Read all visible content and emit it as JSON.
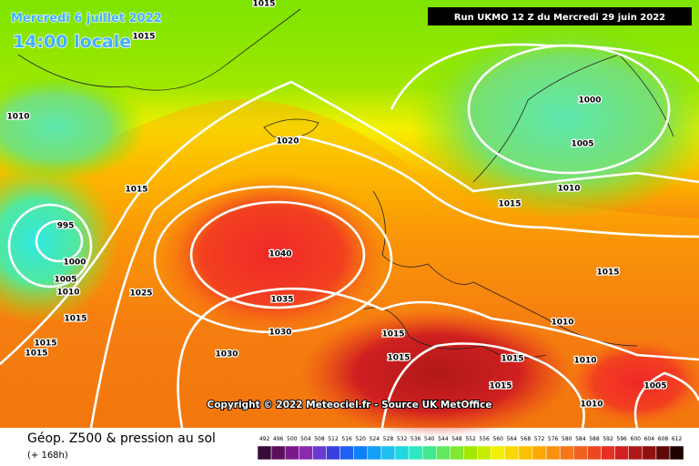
{
  "header": {
    "date": "Mercredi 6 juillet 2022",
    "time": "14:00 locale",
    "run": "Run UKMO 12 Z du Mercredi 29 juin 2022"
  },
  "copyright": "Copyright © 2022 Meteociel.fr - Source UK MetOffice",
  "isobars": [
    1015,
    1015,
    1010,
    1020,
    1015,
    995,
    1000,
    1005,
    1010,
    1025,
    1015,
    1015,
    1015,
    1040,
    1035,
    1030,
    1030,
    1000,
    1005,
    1010,
    1015,
    1015,
    1010,
    1015,
    1015,
    1015,
    1010,
    1015,
    1005,
    1010
  ],
  "footer": {
    "title": "Géop. Z500 & pression au sol",
    "lead": "(+ 168h)"
  },
  "legend": {
    "values": [
      492,
      496,
      500,
      504,
      508,
      512,
      516,
      520,
      524,
      528,
      532,
      536,
      540,
      544,
      548,
      552,
      556,
      560,
      564,
      568,
      572,
      576,
      580,
      584,
      588,
      592,
      596,
      600,
      604,
      608,
      612
    ]
  }
}
